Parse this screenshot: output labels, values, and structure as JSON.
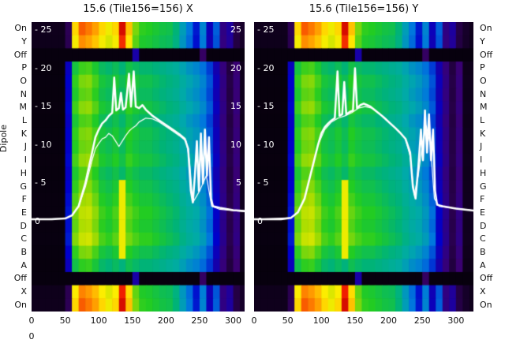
{
  "ylabel": "Dipole",
  "stray_zero": "0",
  "chart_data": {
    "type": "heatmap",
    "description": "Two dipole power heatmap panels with overlaid white spectrum traces",
    "panels": [
      {
        "title": "15.6 (Tile156=156) X",
        "line_main": [
          [
            0,
            0.3
          ],
          [
            30,
            0.3
          ],
          [
            50,
            0.4
          ],
          [
            60,
            0.8
          ],
          [
            70,
            2
          ],
          [
            80,
            5
          ],
          [
            90,
            9
          ],
          [
            95,
            11
          ],
          [
            100,
            12
          ],
          [
            105,
            12.8
          ],
          [
            110,
            13.2
          ],
          [
            115,
            13.8
          ],
          [
            120,
            14.2
          ],
          [
            123,
            18.8
          ],
          [
            126,
            14.5
          ],
          [
            130,
            14.8
          ],
          [
            133,
            16.8
          ],
          [
            136,
            14.6
          ],
          [
            140,
            14.9
          ],
          [
            145,
            19.3
          ],
          [
            148,
            15
          ],
          [
            152,
            19.6
          ],
          [
            155,
            15
          ],
          [
            160,
            14.8
          ],
          [
            165,
            15.2
          ],
          [
            170,
            14.6
          ],
          [
            175,
            14.2
          ],
          [
            180,
            13.8
          ],
          [
            190,
            13.2
          ],
          [
            200,
            12.6
          ],
          [
            210,
            12.0
          ],
          [
            220,
            11.4
          ],
          [
            228,
            10.8
          ],
          [
            233,
            9.5
          ],
          [
            237,
            4
          ],
          [
            240,
            2.5
          ],
          [
            243,
            6
          ],
          [
            246,
            10.5
          ],
          [
            249,
            4
          ],
          [
            252,
            11.5
          ],
          [
            255,
            5
          ],
          [
            258,
            12
          ],
          [
            261,
            6
          ],
          [
            264,
            11
          ],
          [
            267,
            3
          ],
          [
            270,
            2
          ],
          [
            280,
            1.8
          ],
          [
            300,
            1.5
          ],
          [
            330,
            1.3
          ]
        ],
        "line_alt": [
          [
            0,
            0.3
          ],
          [
            50,
            0.4
          ],
          [
            60,
            0.8
          ],
          [
            70,
            2
          ],
          [
            80,
            4.5
          ],
          [
            90,
            8
          ],
          [
            95,
            9.5
          ],
          [
            100,
            10.2
          ],
          [
            105,
            10.8
          ],
          [
            110,
            11
          ],
          [
            115,
            11.5
          ],
          [
            120,
            11.2
          ],
          [
            125,
            10.5
          ],
          [
            130,
            9.8
          ],
          [
            135,
            10.5
          ],
          [
            140,
            11.2
          ],
          [
            145,
            11.8
          ],
          [
            150,
            12.2
          ],
          [
            155,
            12.5
          ],
          [
            160,
            13
          ],
          [
            170,
            13.5
          ],
          [
            180,
            13.4
          ],
          [
            190,
            13
          ],
          [
            200,
            12.4
          ],
          [
            210,
            11.8
          ],
          [
            220,
            11.2
          ],
          [
            230,
            10.5
          ],
          [
            235,
            8
          ],
          [
            240,
            2.5
          ],
          [
            250,
            4
          ],
          [
            260,
            6
          ],
          [
            268,
            2
          ],
          [
            280,
            1.6
          ],
          [
            330,
            1.2
          ]
        ]
      },
      {
        "title": "15.6 (Tile156=156) Y",
        "line_main": [
          [
            0,
            0.3
          ],
          [
            40,
            0.3
          ],
          [
            55,
            0.5
          ],
          [
            65,
            1.2
          ],
          [
            75,
            3
          ],
          [
            85,
            6.5
          ],
          [
            95,
            10
          ],
          [
            100,
            11.5
          ],
          [
            105,
            12.3
          ],
          [
            110,
            12.8
          ],
          [
            115,
            13.2
          ],
          [
            120,
            13.5
          ],
          [
            124,
            19.6
          ],
          [
            127,
            13.8
          ],
          [
            131,
            14
          ],
          [
            134,
            18.2
          ],
          [
            137,
            14
          ],
          [
            142,
            14.3
          ],
          [
            147,
            14.5
          ],
          [
            150,
            20
          ],
          [
            153,
            14.8
          ],
          [
            158,
            15.2
          ],
          [
            163,
            15.4
          ],
          [
            168,
            15.2
          ],
          [
            173,
            15
          ],
          [
            180,
            14.5
          ],
          [
            190,
            13.8
          ],
          [
            200,
            13
          ],
          [
            210,
            12.2
          ],
          [
            218,
            11.5
          ],
          [
            225,
            10.8
          ],
          [
            232,
            9
          ],
          [
            236,
            4.5
          ],
          [
            240,
            3
          ],
          [
            244,
            7
          ],
          [
            248,
            12
          ],
          [
            251,
            8
          ],
          [
            254,
            14.5
          ],
          [
            257,
            9
          ],
          [
            260,
            14
          ],
          [
            263,
            8
          ],
          [
            266,
            12
          ],
          [
            269,
            4
          ],
          [
            272,
            2.2
          ],
          [
            280,
            2
          ],
          [
            300,
            1.7
          ],
          [
            330,
            1.4
          ]
        ],
        "line_alt": [
          [
            0,
            0.3
          ],
          [
            55,
            0.5
          ],
          [
            65,
            1.2
          ],
          [
            75,
            3
          ],
          [
            85,
            6.5
          ],
          [
            95,
            10
          ],
          [
            105,
            12
          ],
          [
            115,
            13
          ],
          [
            125,
            13.5
          ],
          [
            135,
            13.8
          ],
          [
            145,
            14.2
          ],
          [
            155,
            14.8
          ],
          [
            165,
            15
          ],
          [
            175,
            14.8
          ],
          [
            185,
            14.2
          ],
          [
            195,
            13.5
          ],
          [
            205,
            12.6
          ],
          [
            215,
            11.8
          ],
          [
            225,
            10.8
          ],
          [
            232,
            8.5
          ],
          [
            238,
            3.5
          ],
          [
            244,
            6
          ],
          [
            250,
            10
          ],
          [
            256,
            12.5
          ],
          [
            262,
            10
          ],
          [
            268,
            3
          ],
          [
            275,
            2
          ],
          [
            330,
            1.4
          ]
        ]
      }
    ],
    "x_ticks": [
      0,
      50,
      100,
      150,
      200,
      250,
      300
    ],
    "x_range": [
      0,
      330
    ],
    "value_range": [
      0,
      26
    ],
    "value_ticks": [
      {
        "v": 25,
        "label": "- 25"
      },
      {
        "v": 20,
        "label": "- 20"
      },
      {
        "v": 15,
        "label": "- 15"
      },
      {
        "v": 10,
        "label": "- 10"
      },
      {
        "v": 5,
        "label": "- 5"
      },
      {
        "v": 0,
        "label": "0"
      }
    ],
    "right_edge_ticks": [
      {
        "v": 25,
        "label": "25"
      },
      {
        "v": 20,
        "label": "20"
      },
      {
        "v": 15,
        "label": "15"
      },
      {
        "v": 10,
        "label": "10"
      },
      {
        "v": 5,
        "label": "5"
      }
    ],
    "dipole_labels": [
      "On",
      "Y",
      "Off",
      "P",
      "O",
      "N",
      "M",
      "L",
      "K",
      "J",
      "I",
      "H",
      "G",
      "F",
      "E",
      "D",
      "C",
      "B",
      "A",
      "Off",
      "X",
      "On"
    ],
    "colormap": {
      "name": "nipy-spectral-like",
      "stops": [
        [
          0.0,
          "#000000"
        ],
        [
          0.08,
          "#3b0070"
        ],
        [
          0.18,
          "#0000cc"
        ],
        [
          0.28,
          "#0077dd"
        ],
        [
          0.36,
          "#00aaaa"
        ],
        [
          0.45,
          "#00b377"
        ],
        [
          0.55,
          "#22cc22"
        ],
        [
          0.66,
          "#aadd00"
        ],
        [
          0.76,
          "#ffee00"
        ],
        [
          0.85,
          "#ff8800"
        ],
        [
          0.93,
          "#ee1100"
        ],
        [
          1.0,
          "#990000"
        ]
      ]
    },
    "heatmap": {
      "col_step": 10,
      "row_types": {
        "band": [
          0.02,
          0.02,
          0.02,
          0.02,
          0.02,
          0.06,
          0.78,
          0.88,
          0.86,
          0.83,
          0.78,
          0.74,
          0.78,
          0.95,
          0.8,
          0.62,
          0.56,
          0.55,
          0.53,
          0.51,
          0.5,
          0.45,
          0.34,
          0.28,
          0.2,
          0.3,
          0.16,
          0.26,
          0.1,
          0.13,
          0.05,
          0.03,
          0.02
        ],
        "off": [
          0.01,
          0.01,
          0.01,
          0.01,
          0.01,
          0.01,
          0.01,
          0.01,
          0.01,
          0.01,
          0.01,
          0.01,
          0.01,
          0.01,
          0.01,
          0.14,
          0.01,
          0.01,
          0.01,
          0.01,
          0.01,
          0.01,
          0.01,
          0.01,
          0.01,
          0.07,
          0.01,
          0.01,
          0.01,
          0.01,
          0.01,
          0.01,
          0.01
        ],
        "main": [
          0.01,
          0.01,
          0.01,
          0.01,
          0.01,
          0.18,
          0.56,
          0.62,
          0.63,
          0.58,
          0.52,
          0.5,
          0.53,
          0.49,
          0.55,
          0.52,
          0.5,
          0.5,
          0.48,
          0.46,
          0.44,
          0.42,
          0.38,
          0.35,
          0.33,
          0.3,
          0.25,
          0.16,
          0.1,
          0.05,
          0.09,
          0.02,
          0.02
        ]
      },
      "rows": [
        {
          "type": "band",
          "gain": 1.0
        },
        {
          "type": "band",
          "gain": 0.96
        },
        {
          "type": "off",
          "gain": 1.0
        },
        {
          "type": "main",
          "gain": 0.92
        },
        {
          "type": "main",
          "gain": 1.0
        },
        {
          "type": "main",
          "gain": 0.96
        },
        {
          "type": "main",
          "gain": 1.02
        },
        {
          "type": "main",
          "gain": 0.94
        },
        {
          "type": "main",
          "gain": 1.0
        },
        {
          "type": "main",
          "gain": 0.98
        },
        {
          "type": "main",
          "gain": 1.03
        },
        {
          "type": "main",
          "gain": 0.95
        },
        {
          "type": "main",
          "gain": 1.0
        },
        {
          "type": "main",
          "gain": 1.05
        },
        {
          "type": "main",
          "gain": 1.1
        },
        {
          "type": "main",
          "gain": 1.07
        },
        {
          "type": "main",
          "gain": 1.12
        },
        {
          "type": "main",
          "gain": 1.0
        },
        {
          "type": "main",
          "gain": 0.9
        },
        {
          "type": "off",
          "gain": 1.0
        },
        {
          "type": "band",
          "gain": 0.97
        },
        {
          "type": "band",
          "gain": 1.0
        }
      ],
      "overrides": [
        [
          12,
          13,
          0.74
        ],
        [
          13,
          13,
          0.74
        ],
        [
          14,
          13,
          0.74
        ],
        [
          15,
          13,
          0.74
        ],
        [
          16,
          13,
          0.74
        ],
        [
          17,
          13,
          0.74
        ]
      ]
    }
  }
}
